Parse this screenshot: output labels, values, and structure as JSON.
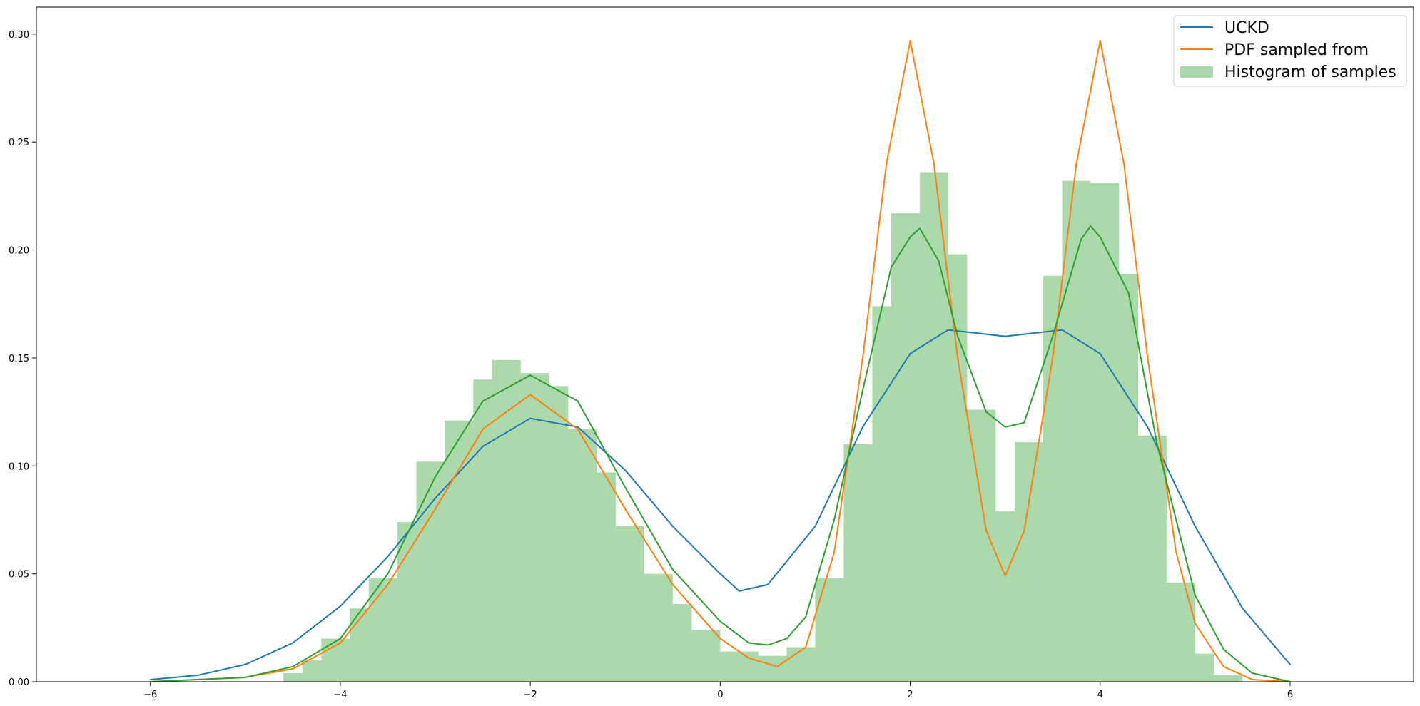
{
  "chart_data": {
    "type": "line",
    "title": "",
    "xlabel": "",
    "ylabel": "",
    "xlim": [
      -7.2,
      7.3
    ],
    "ylim": [
      0.0,
      0.3125
    ],
    "x_ticks": [
      -6,
      -4,
      -2,
      0,
      2,
      4,
      6
    ],
    "y_ticks": [
      0.0,
      0.05,
      0.1,
      0.15,
      0.2,
      0.25,
      0.3
    ],
    "x_tick_labels": [
      "−6",
      "−4",
      "−2",
      "0",
      "2",
      "4",
      "6"
    ],
    "y_tick_labels": [
      "0.00",
      "0.05",
      "0.10",
      "0.15",
      "0.20",
      "0.25",
      "0.30"
    ],
    "grid": false,
    "legend_position": "top-right",
    "series": [
      {
        "name": "UCKD",
        "color": "#1f77b4",
        "points": [
          [
            -6.0,
            0.001
          ],
          [
            -5.5,
            0.003
          ],
          [
            -5.0,
            0.008
          ],
          [
            -4.5,
            0.018
          ],
          [
            -4.0,
            0.035
          ],
          [
            -3.5,
            0.058
          ],
          [
            -3.0,
            0.085
          ],
          [
            -2.5,
            0.109
          ],
          [
            -2.0,
            0.122
          ],
          [
            -1.5,
            0.118
          ],
          [
            -1.0,
            0.098
          ],
          [
            -0.5,
            0.072
          ],
          [
            0.0,
            0.05
          ],
          [
            0.2,
            0.042
          ],
          [
            0.5,
            0.045
          ],
          [
            1.0,
            0.072
          ],
          [
            1.5,
            0.118
          ],
          [
            2.0,
            0.152
          ],
          [
            2.4,
            0.163
          ],
          [
            3.0,
            0.16
          ],
          [
            3.6,
            0.163
          ],
          [
            4.0,
            0.152
          ],
          [
            4.5,
            0.118
          ],
          [
            5.0,
            0.072
          ],
          [
            5.5,
            0.034
          ],
          [
            6.0,
            0.008
          ]
        ]
      },
      {
        "name": "PDF sampled from",
        "color": "#ff7f0e",
        "points": [
          [
            -6.0,
            0.0
          ],
          [
            -5.0,
            0.002
          ],
          [
            -4.5,
            0.006
          ],
          [
            -4.0,
            0.018
          ],
          [
            -3.5,
            0.045
          ],
          [
            -3.0,
            0.08
          ],
          [
            -2.5,
            0.117
          ],
          [
            -2.0,
            0.133
          ],
          [
            -1.5,
            0.117
          ],
          [
            -1.0,
            0.08
          ],
          [
            -0.5,
            0.045
          ],
          [
            0.0,
            0.02
          ],
          [
            0.3,
            0.011
          ],
          [
            0.6,
            0.007
          ],
          [
            0.9,
            0.016
          ],
          [
            1.2,
            0.06
          ],
          [
            1.5,
            0.15
          ],
          [
            1.75,
            0.24
          ],
          [
            2.0,
            0.297
          ],
          [
            2.25,
            0.24
          ],
          [
            2.5,
            0.15
          ],
          [
            2.8,
            0.07
          ],
          [
            3.0,
            0.049
          ],
          [
            3.2,
            0.07
          ],
          [
            3.5,
            0.15
          ],
          [
            3.75,
            0.24
          ],
          [
            4.0,
            0.297
          ],
          [
            4.25,
            0.24
          ],
          [
            4.5,
            0.15
          ],
          [
            4.8,
            0.06
          ],
          [
            5.0,
            0.027
          ],
          [
            5.3,
            0.007
          ],
          [
            5.6,
            0.001
          ],
          [
            6.0,
            0.0
          ]
        ]
      },
      {
        "name": "",
        "color": "#2ca02c",
        "points": [
          [
            -6.0,
            0.0
          ],
          [
            -5.0,
            0.002
          ],
          [
            -4.5,
            0.007
          ],
          [
            -4.0,
            0.02
          ],
          [
            -3.5,
            0.05
          ],
          [
            -3.0,
            0.095
          ],
          [
            -2.5,
            0.13
          ],
          [
            -2.0,
            0.142
          ],
          [
            -1.5,
            0.13
          ],
          [
            -1.0,
            0.09
          ],
          [
            -0.5,
            0.052
          ],
          [
            0.0,
            0.028
          ],
          [
            0.3,
            0.018
          ],
          [
            0.5,
            0.017
          ],
          [
            0.7,
            0.02
          ],
          [
            0.9,
            0.03
          ],
          [
            1.2,
            0.075
          ],
          [
            1.5,
            0.135
          ],
          [
            1.8,
            0.192
          ],
          [
            2.0,
            0.206
          ],
          [
            2.1,
            0.21
          ],
          [
            2.3,
            0.195
          ],
          [
            2.5,
            0.16
          ],
          [
            2.8,
            0.125
          ],
          [
            3.0,
            0.118
          ],
          [
            3.2,
            0.12
          ],
          [
            3.5,
            0.16
          ],
          [
            3.8,
            0.205
          ],
          [
            3.9,
            0.211
          ],
          [
            4.0,
            0.206
          ],
          [
            4.3,
            0.18
          ],
          [
            4.6,
            0.11
          ],
          [
            5.0,
            0.04
          ],
          [
            5.3,
            0.015
          ],
          [
            5.6,
            0.004
          ],
          [
            6.0,
            0.0
          ]
        ]
      }
    ],
    "histogram": {
      "name": "Histogram of samples",
      "color": "#2ca02c",
      "alpha": 0.4,
      "bins": [
        [
          -6.6,
          -4.6,
          0.0
        ],
        [
          -4.6,
          -4.4,
          0.004
        ],
        [
          -4.4,
          -4.2,
          0.01
        ],
        [
          -4.2,
          -3.9,
          0.02
        ],
        [
          -3.9,
          -3.7,
          0.034
        ],
        [
          -3.7,
          -3.4,
          0.048
        ],
        [
          -3.4,
          -3.2,
          0.074
        ],
        [
          -3.2,
          -2.9,
          0.102
        ],
        [
          -2.9,
          -2.6,
          0.121
        ],
        [
          -2.6,
          -2.4,
          0.14
        ],
        [
          -2.4,
          -2.1,
          0.149
        ],
        [
          -2.1,
          -1.8,
          0.143
        ],
        [
          -1.8,
          -1.6,
          0.137
        ],
        [
          -1.6,
          -1.3,
          0.117
        ],
        [
          -1.3,
          -1.1,
          0.097
        ],
        [
          -1.1,
          -0.8,
          0.072
        ],
        [
          -0.8,
          -0.5,
          0.05
        ],
        [
          -0.5,
          -0.3,
          0.036
        ],
        [
          -0.3,
          0.0,
          0.024
        ],
        [
          0.0,
          0.4,
          0.014
        ],
        [
          0.4,
          0.7,
          0.012
        ],
        [
          0.7,
          1.0,
          0.016
        ],
        [
          1.0,
          1.3,
          0.048
        ],
        [
          1.3,
          1.6,
          0.11
        ],
        [
          1.6,
          1.8,
          0.174
        ],
        [
          1.8,
          2.1,
          0.217
        ],
        [
          2.1,
          2.4,
          0.236
        ],
        [
          2.4,
          2.6,
          0.198
        ],
        [
          2.6,
          2.9,
          0.126
        ],
        [
          2.9,
          3.1,
          0.079
        ],
        [
          3.1,
          3.4,
          0.111
        ],
        [
          3.4,
          3.6,
          0.188
        ],
        [
          3.6,
          3.9,
          0.232
        ],
        [
          3.9,
          4.2,
          0.231
        ],
        [
          4.2,
          4.4,
          0.189
        ],
        [
          4.4,
          4.7,
          0.114
        ],
        [
          4.7,
          5.0,
          0.046
        ],
        [
          5.0,
          5.2,
          0.013
        ],
        [
          5.2,
          5.5,
          0.003
        ],
        [
          5.5,
          6.6,
          0.0
        ]
      ]
    },
    "legend": [
      {
        "label": "UCKD",
        "kind": "line",
        "color": "#1f77b4"
      },
      {
        "label": "PDF sampled from",
        "kind": "line",
        "color": "#ff7f0e"
      },
      {
        "label": "Histogram of samples",
        "kind": "patch",
        "color": "#2ca02c"
      }
    ]
  }
}
